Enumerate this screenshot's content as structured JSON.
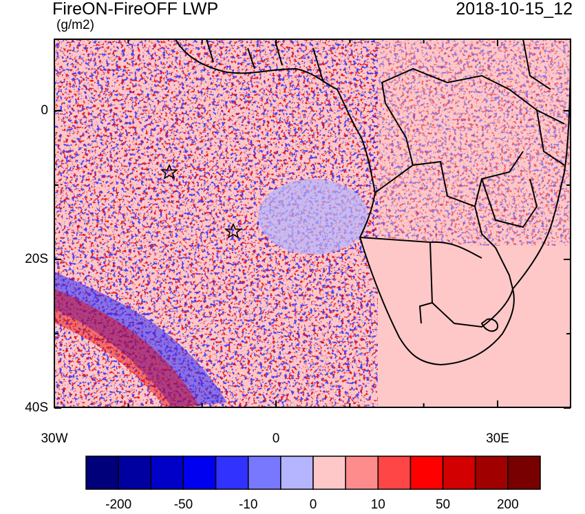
{
  "header": {
    "title": "FireON-FireOFF LWP",
    "units": "(g/m2)",
    "datetime": "2018-10-15_12"
  },
  "map": {
    "lat_ticks": [
      {
        "lat": 0,
        "label": "0"
      },
      {
        "lat": -20,
        "label": "20S"
      },
      {
        "lat": -40,
        "label": "40S"
      }
    ],
    "lon_ticks": [
      {
        "lon": -30,
        "label": "30W"
      },
      {
        "lon": 0,
        "label": "0"
      },
      {
        "lon": 30,
        "label": "30E"
      }
    ],
    "colors": {
      "background_field": "#ffc8c8",
      "land_outline": "#000000"
    }
  },
  "colorbar": {
    "colors": [
      "#00007a",
      "#0000a0",
      "#0000c8",
      "#0000f0",
      "#3232ff",
      "#7878ff",
      "#b4b4ff",
      "#ffc8c8",
      "#ff8c8c",
      "#ff4646",
      "#ff0000",
      "#d20000",
      "#a00000",
      "#780000"
    ],
    "labels": [
      "-200",
      "-50",
      "-10",
      "0",
      "10",
      "50",
      "200"
    ]
  }
}
